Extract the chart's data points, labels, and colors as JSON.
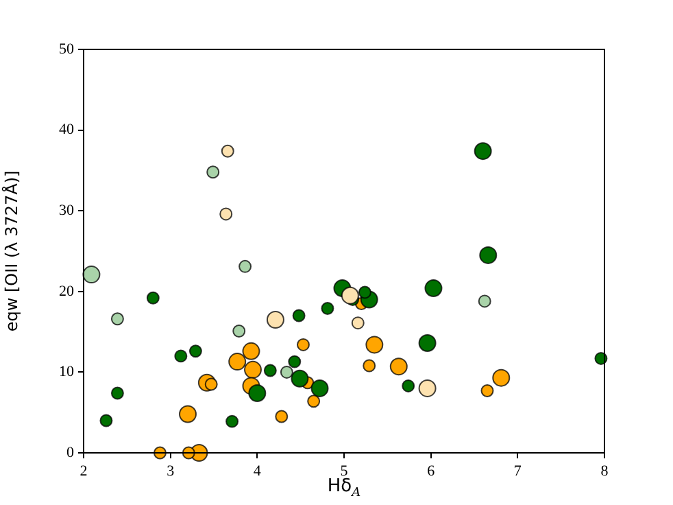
{
  "chart_data": {
    "type": "bubble",
    "xlabel": "Hδ$_{A}$",
    "ylabel": "eqw [OII (λ 3727Å)]",
    "xlim": [
      2,
      8
    ],
    "xticks": [
      2,
      3,
      4,
      5,
      6,
      7,
      8
    ],
    "ylim": [
      0,
      50
    ],
    "yticks": [
      0,
      10,
      20,
      30,
      40,
      50
    ],
    "grid": false,
    "legend": false,
    "marker": "circle",
    "series": [
      {
        "color": "#a9d3a9",
        "x": [
          3.49,
          3.86,
          3.79,
          2.39,
          4.34,
          6.62,
          2.09
        ],
        "values": [
          34.8,
          23.1,
          15.1,
          16.6,
          10.0,
          18.8,
          22.1
        ],
        "sizes": [
          0.5,
          0.5,
          0.5,
          0.5,
          0.5,
          0.5,
          1
        ]
      },
      {
        "color": "#fde2b0",
        "x": [
          3.66,
          3.64,
          5.16,
          4.21,
          5.96,
          5.07
        ],
        "values": [
          37.4,
          29.6,
          16.1,
          16.5,
          8.0,
          19.5
        ],
        "sizes": [
          0.5,
          0.5,
          0.5,
          1,
          1,
          1
        ]
      },
      {
        "color": "#007000",
        "x": [
          2.26,
          2.39,
          2.8,
          3.12,
          3.29,
          3.71,
          4.15,
          4.43,
          4.48,
          4.81,
          5.1,
          5.24,
          5.74,
          7.96
        ],
        "values": [
          4.0,
          7.4,
          19.2,
          12.0,
          12.6,
          3.9,
          10.2,
          11.3,
          17.0,
          17.9,
          19.0,
          19.9,
          8.3,
          11.7
        ],
        "sizes": [
          0.5,
          0.5,
          0.5,
          0.5,
          0.5,
          0.5,
          0.5,
          0.5,
          0.5,
          0.5,
          0.5,
          0.5,
          0.5,
          0.5
        ]
      },
      {
        "color": "#007000",
        "x": [
          4.0,
          4.49,
          4.72,
          4.98,
          5.29,
          5.96,
          6.03,
          6.6,
          6.66
        ],
        "values": [
          7.4,
          9.2,
          8.0,
          20.4,
          19.0,
          13.6,
          20.4,
          37.4,
          24.5
        ],
        "sizes": [
          1,
          1,
          1,
          1,
          1,
          1,
          1,
          1,
          1
        ]
      },
      {
        "color": "#ffa500",
        "x": [
          2.88,
          3.21,
          3.47,
          4.28,
          4.53,
          4.58,
          4.65,
          5.2,
          5.29,
          6.65
        ],
        "values": [
          0,
          0,
          8.5,
          4.5,
          13.4,
          8.7,
          6.4,
          18.5,
          10.8,
          7.7
        ],
        "sizes": [
          0.5,
          0.5,
          0.5,
          0.5,
          0.5,
          0.5,
          0.5,
          0.5,
          0.5,
          0.5
        ]
      },
      {
        "color": "#ffa500",
        "x": [
          3.2,
          3.33,
          3.42,
          3.77,
          3.93,
          3.95,
          3.93,
          5.35,
          5.63,
          6.81
        ],
        "values": [
          4.8,
          0,
          8.7,
          11.3,
          12.6,
          10.3,
          8.3,
          13.4,
          10.7,
          9.3
        ],
        "sizes": [
          1,
          1,
          1,
          1,
          1,
          1,
          1,
          1,
          1,
          1
        ]
      }
    ]
  }
}
